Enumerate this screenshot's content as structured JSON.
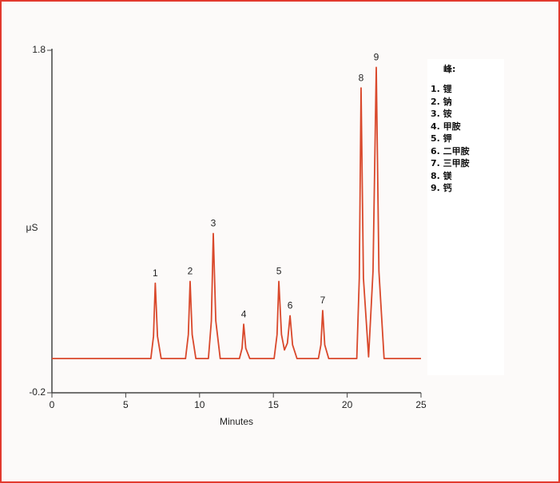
{
  "chart_data": {
    "type": "line",
    "xlabel": "Minutes",
    "ylabel": "μS",
    "xlim": [
      0,
      25
    ],
    "xticks": [
      0,
      5,
      10,
      15,
      20,
      25
    ],
    "ylim": [
      -0.2,
      1.8
    ],
    "yticks": [
      -0.2,
      1.8
    ],
    "series": [
      {
        "color": "#d9482b",
        "x": [
          0,
          6.7,
          6.88,
          7.0,
          7.15,
          7.4,
          9.05,
          9.24,
          9.36,
          9.5,
          9.75,
          10.6,
          10.8,
          10.93,
          11.1,
          11.4,
          12.7,
          12.88,
          12.99,
          13.13,
          13.4,
          15.05,
          15.25,
          15.37,
          15.55,
          15.75,
          15.95,
          16.13,
          16.3,
          16.6,
          18.05,
          18.22,
          18.34,
          18.48,
          18.75,
          20.65,
          20.82,
          20.94,
          21.1,
          21.45,
          21.75,
          21.97,
          22.15,
          22.5,
          25
        ],
        "values": [
          0,
          0,
          0.13,
          0.44,
          0.13,
          0,
          0,
          0.14,
          0.45,
          0.14,
          0,
          0,
          0.22,
          0.73,
          0.22,
          0,
          0,
          0.06,
          0.2,
          0.06,
          0,
          0,
          0.14,
          0.45,
          0.14,
          0.05,
          0.09,
          0.25,
          0.08,
          0,
          0,
          0.08,
          0.28,
          0.08,
          0,
          0,
          0.47,
          1.58,
          0.47,
          0.01,
          0.51,
          1.7,
          0.51,
          0,
          0
        ]
      }
    ],
    "annotations": [
      {
        "text": "1",
        "x": 7.0,
        "y": 0.44
      },
      {
        "text": "2",
        "x": 9.36,
        "y": 0.45
      },
      {
        "text": "3",
        "x": 10.93,
        "y": 0.73
      },
      {
        "text": "4",
        "x": 12.99,
        "y": 0.2
      },
      {
        "text": "5",
        "x": 15.37,
        "y": 0.45
      },
      {
        "text": "6",
        "x": 16.13,
        "y": 0.25
      },
      {
        "text": "7",
        "x": 18.34,
        "y": 0.28
      },
      {
        "text": "8",
        "x": 20.94,
        "y": 1.58
      },
      {
        "text": "9",
        "x": 21.97,
        "y": 1.7
      }
    ],
    "legend_title": "峰:",
    "legend_items": [
      "1. 锂",
      "2. 钠",
      "3. 铵",
      "4. 甲胺",
      "5. 钾",
      "6. 二甲胺",
      "7. 三甲胺",
      "8. 镁",
      "9. 钙"
    ]
  }
}
